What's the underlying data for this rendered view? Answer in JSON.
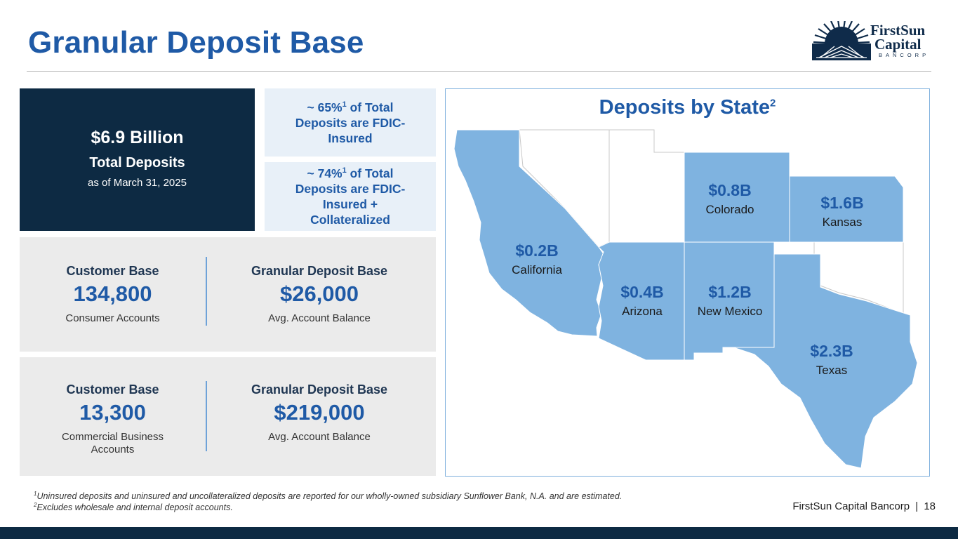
{
  "title": "Granular Deposit Base",
  "logo": {
    "line1": "FirstSun",
    "line2": "Capital",
    "line3": "BANCORP"
  },
  "total": {
    "amount": "$6.9 Billion",
    "label": "Total Deposits",
    "date": "as of March 31, 2025"
  },
  "fdic": [
    {
      "pre": "~ 65%",
      "sup": "1",
      "post": " of Total Deposits are FDIC-Insured"
    },
    {
      "pre": "~ 74%",
      "sup": "1",
      "post": " of Total Deposits are FDIC-Insured + Collateralized"
    }
  ],
  "consumer": {
    "customer_head": "Customer Base",
    "customer_value": "134,800",
    "customer_sub": "Consumer Accounts",
    "granular_head": "Granular Deposit Base",
    "granular_value": "$26,000",
    "granular_sub": "Avg. Account Balance"
  },
  "commercial": {
    "customer_head": "Customer Base",
    "customer_value": "13,300",
    "customer_sub": "Commercial Business Accounts",
    "granular_head": "Granular Deposit Base",
    "granular_value": "$219,000",
    "granular_sub": "Avg. Account Balance"
  },
  "map": {
    "title": "Deposits by State",
    "title_sup": "2",
    "fill_color": "#7fb3e0",
    "states": [
      {
        "amount": "$0.2B",
        "name": "California"
      },
      {
        "amount": "$0.8B",
        "name": "Colorado"
      },
      {
        "amount": "$1.6B",
        "name": "Kansas"
      },
      {
        "amount": "$0.4B",
        "name": "Arizona"
      },
      {
        "amount": "$1.2B",
        "name": "New Mexico"
      },
      {
        "amount": "$2.3B",
        "name": "Texas"
      }
    ]
  },
  "footnotes": [
    {
      "sup": "1",
      "text": "Uninsured deposits and uninsured and uncollateralized deposits are reported for our wholly-owned subsidiary Sunflower Bank, N.A. and are estimated."
    },
    {
      "sup": "2",
      "text": "Excludes wholesale and internal deposit accounts."
    }
  ],
  "footer": {
    "company": "FirstSun Capital Bancorp",
    "separator": "|",
    "page": "18"
  }
}
